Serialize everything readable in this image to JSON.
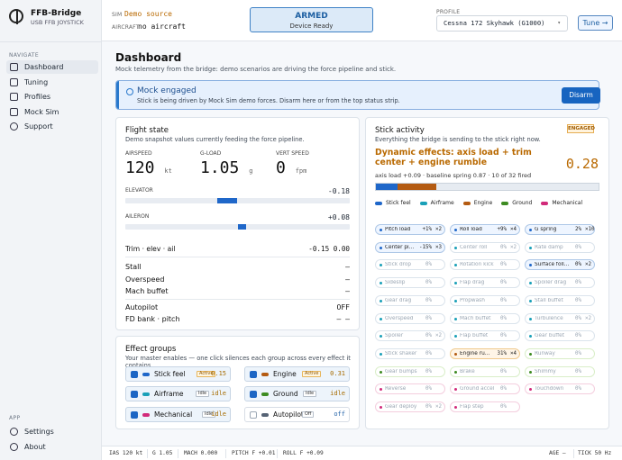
{
  "brand": {
    "title": "FFB-Bridge",
    "subtitle": "USB FFB JOYSTICK"
  },
  "nav": {
    "section": "NAVIGATE",
    "items": [
      "Dashboard",
      "Tuning",
      "Profiles",
      "Mock Sim",
      "Support"
    ],
    "app_section": "APP",
    "app_items": [
      "Settings",
      "About"
    ]
  },
  "top": {
    "sim_label": "SIM",
    "sim_value": "Demo source",
    "aircraft_label": "AIRCRAFT",
    "aircraft_value": "no aircraft",
    "armed_title": "ARMED",
    "armed_sub": "Device Ready",
    "profile_label": "PROFILE",
    "profile_value": "Cessna 172 Skyhawk (G1000)",
    "tune": "Tune →"
  },
  "dashboard": {
    "title": "Dashboard",
    "subtitle": "Mock telemetry from the bridge: demo scenarios are driving the force pipeline and stick."
  },
  "alert": {
    "title": "Mock engaged",
    "text": "Stick is being driven by Mock Sim demo forces. Disarm here or from the top status strip.",
    "button": "Disarm"
  },
  "flight": {
    "title": "Flight state",
    "subtitle": "Demo snapshot values currently feeding the force pipeline.",
    "airspeed_label": "AIRSPEED",
    "airspeed": "120",
    "airspeed_unit": "kt",
    "gload_label": "G-LOAD",
    "gload": "1.05",
    "gload_unit": "g",
    "vs_label": "VERT SPEED",
    "vs": "0",
    "vs_unit": "fpm",
    "elevator_label": "ELEVATOR",
    "elevator": "-0.18",
    "aileron_label": "AILERON",
    "aileron": "+0.08",
    "trim_label": "Trim · elev · ail",
    "trim_value": "-0.15 0.00",
    "stall": "Stall",
    "stall_v": "—",
    "overspeed": "Overspeed",
    "overspeed_v": "—",
    "mach": "Mach buffet",
    "mach_v": "—",
    "autopilot": "Autopilot",
    "autopilot_v": "OFF",
    "fd": "FD bank · pitch",
    "fd_v": "— —",
    "elevator_fill": -0.18,
    "aileron_fill": 0.08
  },
  "effects": {
    "title": "Effect groups",
    "subtitle": "Your master enables — one click silences each group across every effect it contains.",
    "groups": [
      {
        "name": "Stick feel",
        "badge": "Active",
        "value": "0.15",
        "color": "#1f67c9"
      },
      {
        "name": "Engine",
        "badge": "Active",
        "value": "0.31",
        "color": "#b45b12"
      },
      {
        "name": "Airframe",
        "badge": "Idle",
        "value": "idle",
        "color": "#1aa0b8"
      },
      {
        "name": "Ground",
        "badge": "Idle",
        "value": "idle",
        "color": "#3d8b21"
      },
      {
        "name": "Mechanical",
        "badge": "Idle",
        "value": "idle",
        "color": "#d12a7a"
      },
      {
        "name": "Autopilot",
        "badge": "Off",
        "value": "off",
        "color": "#566375"
      }
    ]
  },
  "stick": {
    "title": "Stick activity",
    "subtitle": "Everything the bridge is sending to the stick right now.",
    "badge": "ENGAGED",
    "dynamic": "Dynamic effects: axis load + trim center + engine rumble",
    "value": "0.28",
    "meta": "axis load +0.09 · baseline spring 0.87 · 10 of 32 fired",
    "legend": [
      "Stick feel",
      "Airframe",
      "Engine",
      "Ground",
      "Mechanical"
    ],
    "legend_colors": [
      "#1f67c9",
      "#1aa0b8",
      "#b45b12",
      "#3d8b21",
      "#d12a7a"
    ],
    "chips": [
      [
        "Pitch load",
        "+1%",
        "×2",
        "on"
      ],
      [
        "Roll load",
        "+9%",
        "×4",
        "on"
      ],
      [
        "G spring",
        "2%",
        "×10",
        "on"
      ],
      [
        "Center pi...",
        "-15%",
        "×3",
        "on"
      ],
      [
        "Center roll",
        "0%",
        "×2",
        "mu"
      ],
      [
        "Rate damp",
        "0%",
        "",
        "mu"
      ],
      [
        "Stick drop",
        "0%",
        "",
        "mu"
      ],
      [
        "Rotation kick",
        "0%",
        "",
        "mu"
      ],
      [
        "Surface foll...",
        "0%",
        "×2",
        "on"
      ],
      [
        "Sideslip",
        "0%",
        "",
        "mu"
      ],
      [
        "Flap drag",
        "0%",
        "",
        "mu"
      ],
      [
        "Spoiler drag",
        "0%",
        "",
        "mu"
      ],
      [
        "Gear drag",
        "0%",
        "",
        "mu"
      ],
      [
        "Propwash",
        "0%",
        "",
        "mu"
      ],
      [
        "Stall buffet",
        "0%",
        "",
        "mu"
      ],
      [
        "Overspeed",
        "0%",
        "",
        "mu"
      ],
      [
        "Mach buffet",
        "0%",
        "",
        "mu"
      ],
      [
        "Turbulence",
        "0%",
        "×2",
        "mu"
      ],
      [
        "Spoiler",
        "0%",
        "×2",
        "mu"
      ],
      [
        "Flap buffet",
        "0%",
        "",
        "mu"
      ],
      [
        "Gear buffet",
        "0%",
        "",
        "mu"
      ],
      [
        "Stick shaker",
        "0%",
        "",
        "mu"
      ],
      [
        "Engine ru...",
        "31%",
        "×4",
        "hot"
      ],
      [
        "Runway",
        "0%",
        "",
        "gr"
      ],
      [
        "Gear bumps",
        "0%",
        "",
        "gr"
      ],
      [
        "Brake",
        "0%",
        "",
        "gr"
      ],
      [
        "Shimmy",
        "0%",
        "",
        "gr"
      ],
      [
        "Reverse",
        "0%",
        "",
        "pk"
      ],
      [
        "Ground accel",
        "0%",
        "",
        "pk"
      ],
      [
        "Touchdown",
        "0%",
        "",
        "pk"
      ],
      [
        "Gear deploy",
        "0%",
        "×2",
        "pk"
      ],
      [
        "Flap step",
        "0%",
        "",
        "pk"
      ]
    ]
  },
  "status": {
    "ias": "IAS 120 kt",
    "g": "G 1.05",
    "mach": "MACH 0.000",
    "pitch": "PITCH F +0.01",
    "roll": "ROLL F +0.09",
    "age": "AGE —",
    "tick": "TICK 50 Hz"
  }
}
